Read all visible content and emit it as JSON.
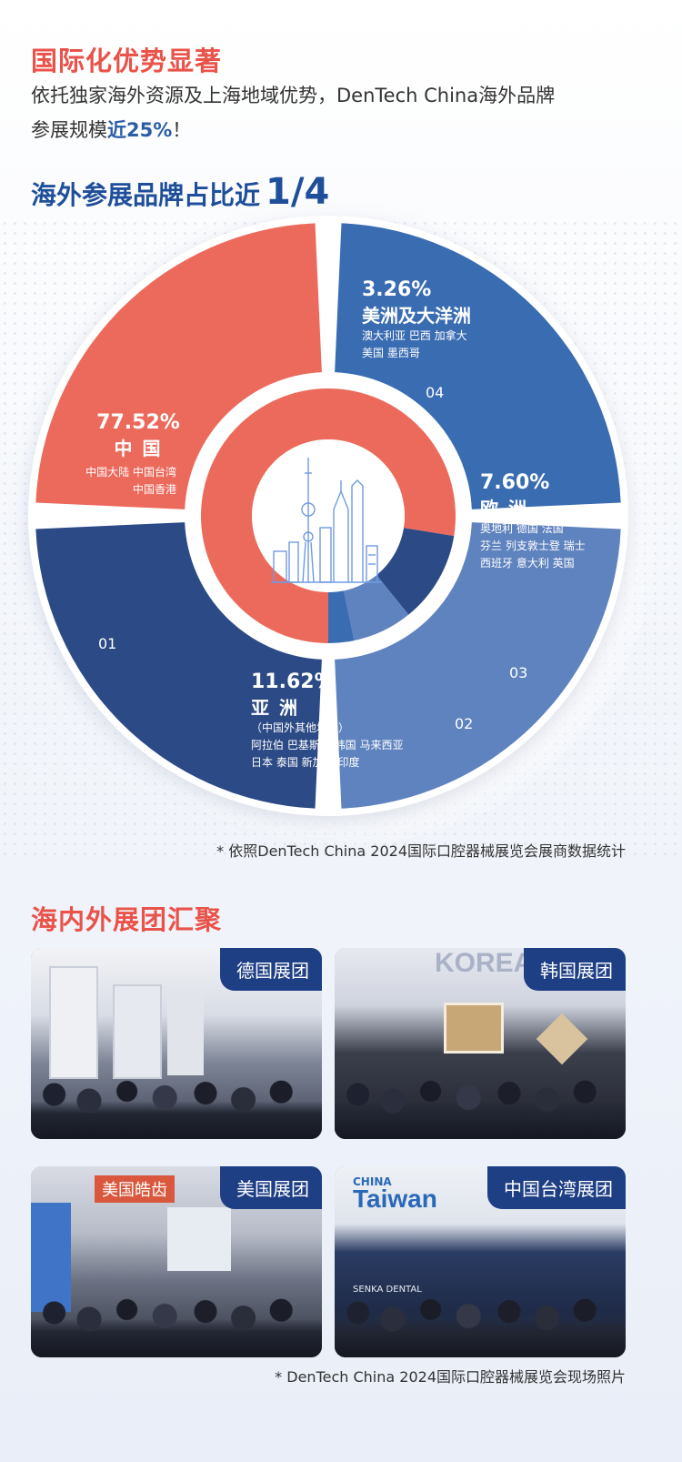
{
  "section1": {
    "title": "国际化优势显著",
    "intro_line1": "依托独家海外资源及上海地域优势，DenTech  China海外品牌",
    "intro_line2_pre": "参展规模",
    "intro_line2_highlight": "近25%",
    "intro_line2_post": "！"
  },
  "chart_heading": {
    "text": "海外参展品牌占比近",
    "big": "1/4"
  },
  "chart_data": {
    "type": "pie",
    "style": "donut",
    "slices": [
      {
        "id": "01",
        "region": "中 国",
        "percent": 77.52,
        "percent_label": "77.52%",
        "countries": [
          "中国大陆 中国台湾",
          "中国香港"
        ],
        "color": "#ec6a5c"
      },
      {
        "id": "02",
        "region": "亚 洲",
        "percent": 11.62,
        "percent_label": "11.62%",
        "note": "（中国外其他地区）",
        "countries": [
          "阿拉伯 巴基斯坦 韩国 马来西亚",
          "日本 泰国 新加坡 印度"
        ],
        "color": "#2c4a85"
      },
      {
        "id": "03",
        "region": "欧 洲",
        "percent": 7.6,
        "percent_label": "7.60%",
        "countries": [
          "奥地利 德国 法国",
          "芬兰 列支敦士登 瑞士",
          "西班牙 意大利 英国"
        ],
        "color": "#5f83bf"
      },
      {
        "id": "04",
        "region": "美洲及大洋洲",
        "percent": 3.26,
        "percent_label": "3.26%",
        "countries": [
          "澳大利亚 巴西 加拿大",
          "美国 墨西哥"
        ],
        "color": "#3a6cb2"
      }
    ]
  },
  "chart_note": "* 依照DenTech China 2024国际口腔器械展览会展商数据统计",
  "section2": {
    "title": "海内外展团汇聚",
    "photos": [
      {
        "tag": "德国展团",
        "scene": "german"
      },
      {
        "tag": "韩国展团",
        "scene": "korea"
      },
      {
        "tag": "美国展团",
        "scene": "usa"
      },
      {
        "tag": "中国台湾展团",
        "scene": "taiwan"
      }
    ],
    "sign_korea": "KOREA",
    "sign_usa": "美国皓齿",
    "sign_taiwan_small": "CHINA",
    "sign_taiwan": "Taiwan",
    "sign_senka": "SENKA DENTAL",
    "note": "* DenTech China 2024国际口腔器械展览会现场照片"
  },
  "colors": {
    "red": "#e9534a",
    "blue_heading": "#1f4f9a",
    "china": "#ec6a5c",
    "asia": "#2c4a85",
    "europe": "#5f83bf",
    "americas": "#3a6cb2"
  }
}
